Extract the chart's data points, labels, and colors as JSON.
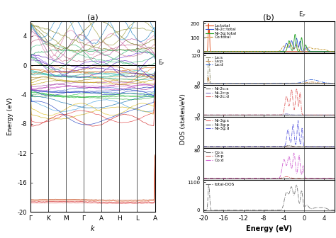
{
  "title_a": "(a)",
  "title_b": "(b)",
  "band_ylim": [
    -20,
    6
  ],
  "band_yticks": [
    -20,
    -16,
    -12,
    -8,
    -4,
    0,
    4
  ],
  "band_xlabel": "k",
  "band_ylabel": "Energy (eV)",
  "kpoints": [
    "Γ",
    "K",
    "M",
    "Γ",
    "A",
    "H",
    "L",
    "A"
  ],
  "ef_label": "E$_F$",
  "dos_xlabel": "Energy (eV)",
  "dos_ylabel": "DOS (states/eV)",
  "dos_xlim": [
    -20,
    6
  ],
  "dos_xticks": [
    -20,
    -16,
    -12,
    -8,
    -4,
    0,
    4
  ],
  "panel_configs": [
    {
      "legend": [
        "La:total",
        "Ni-2c:total",
        "Ni-3g:total",
        "Co:total"
      ],
      "colors": [
        "#e05020",
        "#3050d0",
        "#20a020",
        "#c09020"
      ],
      "linestyles": [
        "-",
        "-",
        "-",
        "--"
      ],
      "ymax": 200,
      "yticks": [
        0,
        100,
        200
      ]
    },
    {
      "legend": [
        "La:s",
        "La:p",
        "La:d"
      ],
      "colors": [
        "#808060",
        "#c08040",
        "#3060d0"
      ],
      "linestyles": [
        "-.",
        "-.",
        "-."
      ],
      "ymax": 120,
      "yticks": [
        0,
        120
      ]
    },
    {
      "legend": [
        "Ni-2c:s",
        "Ni-2c:p",
        "Ni-2c:d"
      ],
      "colors": [
        "#606060",
        "#8070c0",
        "#e06060"
      ],
      "linestyles": [
        "-.",
        "-.",
        "-."
      ],
      "ymax": 80,
      "yticks": [
        0,
        80
      ]
    },
    {
      "legend": [
        "Ni-3g:s",
        "Ni-3g:p",
        "Ni-3g:d"
      ],
      "colors": [
        "#e06060",
        "#606060",
        "#6060e0"
      ],
      "linestyles": [
        "-.",
        "-.",
        "-."
      ],
      "ymax": 70,
      "yticks": [
        0,
        70
      ]
    },
    {
      "legend": [
        "Co:s",
        "Co:p",
        "Co:d"
      ],
      "colors": [
        "#606060",
        "#e06060",
        "#d060d0"
      ],
      "linestyles": [
        "-.",
        "-.",
        "-."
      ],
      "ymax": 80,
      "yticks": [
        0,
        80
      ]
    },
    {
      "legend": [
        "total-DOS"
      ],
      "colors": [
        "#707070"
      ],
      "linestyles": [
        "-."
      ],
      "ymax": 1100,
      "yticks": [
        0,
        1100
      ]
    }
  ]
}
